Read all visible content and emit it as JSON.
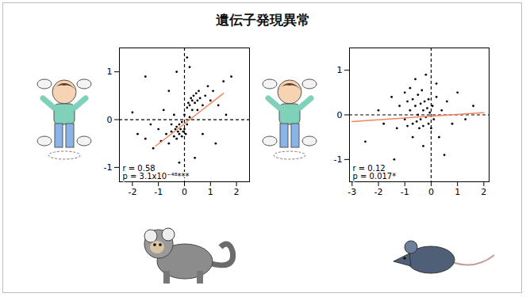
{
  "title": "遺伝子発現異常",
  "chart_data": [
    {
      "type": "scatter",
      "color": "#000000",
      "x": [
        -2.0,
        -1.8,
        -1.5,
        -1.3,
        -1.2,
        -1.0,
        -0.9,
        -0.8,
        -0.7,
        -0.6,
        -0.5,
        -0.5,
        -0.4,
        -0.4,
        -0.35,
        -0.3,
        -0.3,
        -0.25,
        -0.2,
        -0.2,
        -0.15,
        -0.1,
        -0.1,
        -0.05,
        0,
        0,
        0.05,
        0.1,
        0.1,
        0.15,
        0.2,
        0.2,
        0.25,
        0.3,
        0.3,
        0.35,
        0.4,
        0.45,
        0.5,
        0.5,
        0.55,
        0.6,
        0.7,
        0.8,
        0.9,
        1.0,
        1.1,
        1.3,
        1.5,
        1.6,
        1.8,
        -0.3,
        0.2,
        0.4,
        -0.6,
        0.7,
        -1.5,
        0.1,
        1.2,
        -0.2
      ],
      "values": [
        0.15,
        -0.3,
        -0.4,
        -0.1,
        -0.6,
        -0.2,
        -0.45,
        0.2,
        -0.3,
        -0.5,
        -0.25,
        -0.1,
        -0.35,
        0.1,
        -0.2,
        -0.15,
        -0.4,
        -0.25,
        -0.3,
        -0.1,
        -0.2,
        -0.35,
        -0.05,
        -0.25,
        -0.2,
        0.1,
        -0.3,
        0.25,
        -0.1,
        0.35,
        0.3,
        0.05,
        0.45,
        0.4,
        0.2,
        0.5,
        0.35,
        0.55,
        0.4,
        0.2,
        0.6,
        0.45,
        0.3,
        0.5,
        0.7,
        0.4,
        0.6,
        0.3,
        0.8,
        0.1,
        0.9,
        1.0,
        1.1,
        -0.8,
        0.6,
        -0.3,
        0.9,
        1.3,
        -0.5,
        -0.9
      ],
      "fit_line": {
        "x": [
          -1.1,
          1.5
        ],
        "values": [
          -0.55,
          0.55
        ],
        "color": "#f4845f"
      },
      "reference_x": 0,
      "reference_y": 0,
      "annotations": [
        "r = 0.58",
        "p = 3.1x10⁻⁴⁸***"
      ],
      "xlim": [
        -2.5,
        2.5
      ],
      "xticks": [
        -2,
        -1,
        0,
        1,
        2
      ],
      "ylim": [
        -1.3,
        1.5
      ],
      "yticks": [
        -1,
        0,
        1
      ]
    },
    {
      "type": "scatter",
      "color": "#000000",
      "x": [
        -2.5,
        -2.0,
        -1.8,
        -1.5,
        -1.3,
        -1.2,
        -1.0,
        -1.0,
        -0.9,
        -0.9,
        -0.8,
        -0.8,
        -0.7,
        -0.7,
        -0.6,
        -0.6,
        -0.55,
        -0.5,
        -0.5,
        -0.45,
        -0.4,
        -0.4,
        -0.35,
        -0.3,
        -0.3,
        -0.25,
        -0.2,
        -0.2,
        -0.15,
        -0.1,
        -0.1,
        -0.05,
        0,
        0.05,
        0.1,
        0.2,
        0.3,
        0.4,
        0.5,
        0.6,
        0.8,
        1.0,
        1.3,
        1.6,
        -1.4,
        -0.3,
        0.2,
        -0.7
      ],
      "values": [
        -0.6,
        0.1,
        -0.2,
        0.4,
        -0.3,
        0.2,
        0.5,
        -0.1,
        0.3,
        -0.25,
        0.6,
        0.1,
        0.35,
        -0.2,
        0.8,
        0.2,
        -0.15,
        0.45,
        0.0,
        -0.3,
        0.25,
        -0.1,
        0.55,
        0.1,
        -0.25,
        0.3,
        -0.05,
        0.9,
        0.15,
        -0.2,
        0.35,
        0.05,
        -0.3,
        0.2,
        -0.1,
        0.4,
        -0.5,
        0.1,
        -0.9,
        0.3,
        -0.2,
        0.5,
        -0.1,
        0.2,
        -1.0,
        -0.7,
        0.7,
        -0.5
      ],
      "fit_line": {
        "x": [
          -3.0,
          2.0
        ],
        "values": [
          -0.15,
          0.05
        ],
        "color": "#f4845f"
      },
      "reference_x": 0,
      "reference_y": 0,
      "annotations": [
        "r = 0.12",
        "p = 0.017*"
      ],
      "xlim": [
        -3.1,
        2.2
      ],
      "xticks": [
        -3,
        -2,
        -1,
        0,
        1,
        2
      ],
      "ylim": [
        -1.5,
        1.5
      ],
      "yticks": [
        -1,
        0,
        1
      ]
    }
  ]
}
